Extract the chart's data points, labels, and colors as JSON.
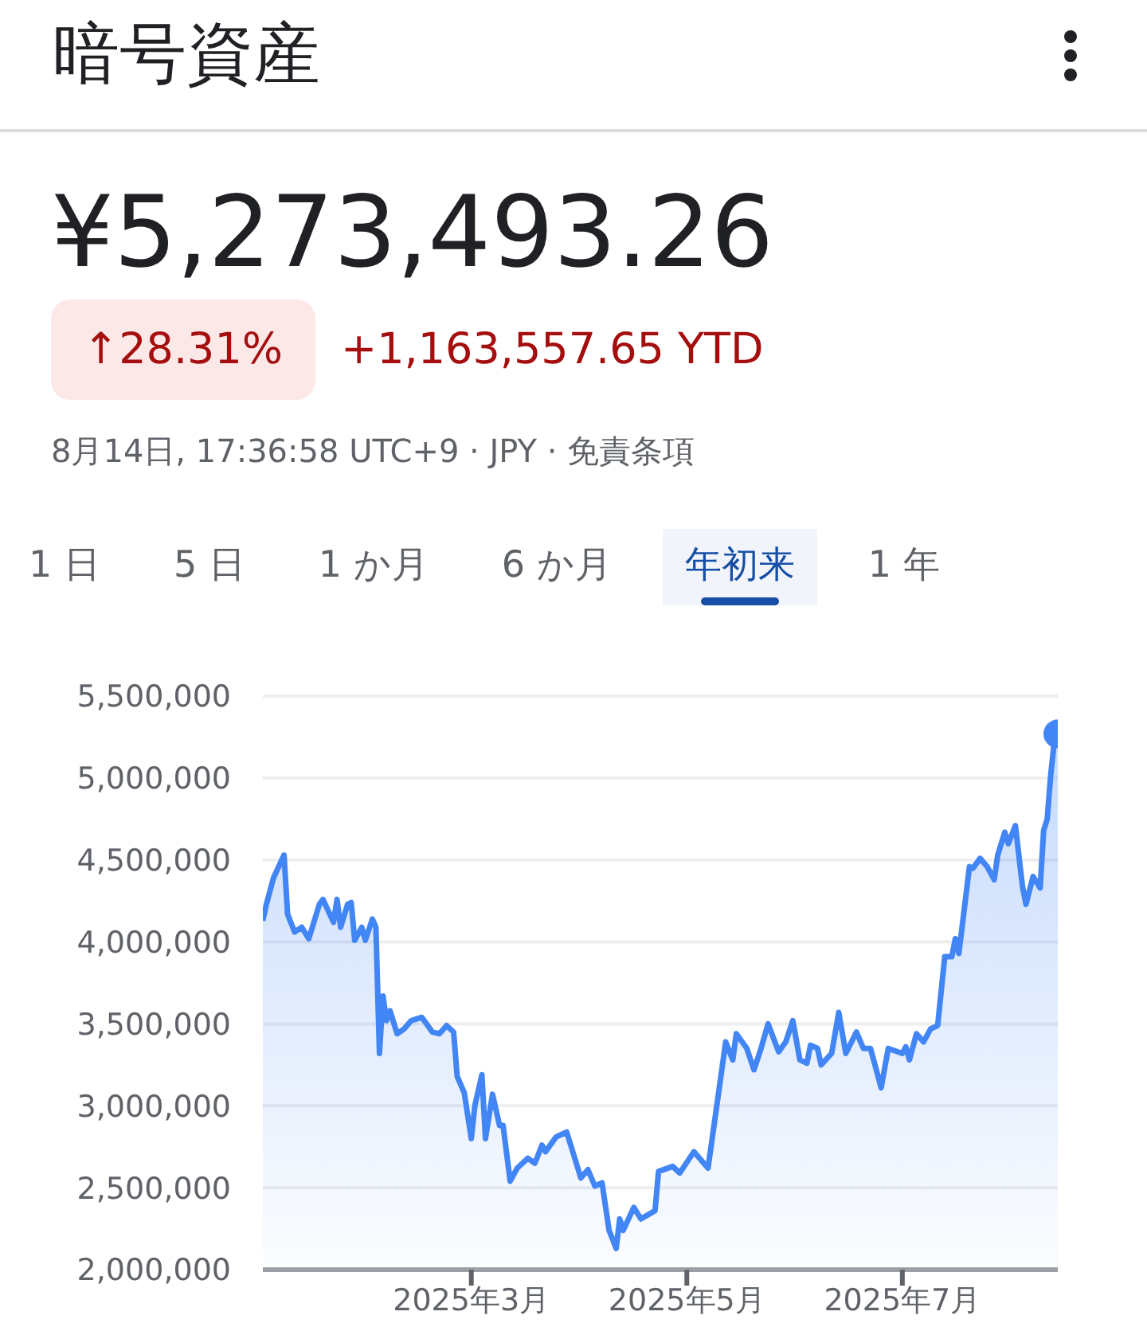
{
  "chart_data": {
    "type": "area",
    "title": "暗号資産",
    "subtitle": "¥5,273,493.26",
    "annotations": [
      "↑28.31%",
      "+1,163,557.65 YTD",
      "8月14日, 17:36:58 UTC+9 · JPY · 免責条項",
      "1 日",
      "5 日",
      "1 か月",
      "6 か月",
      "年初来",
      "1 年"
    ],
    "x": [
      "2025-01-01",
      "2025-01-02",
      "2025-01-04",
      "2025-01-07",
      "2025-01-08",
      "2025-01-10",
      "2025-01-12",
      "2025-01-14",
      "2025-01-17",
      "2025-01-18",
      "2025-01-21",
      "2025-01-22",
      "2025-01-23",
      "2025-01-25",
      "2025-01-26",
      "2025-01-27",
      "2025-01-29",
      "2025-01-30",
      "2025-02-01",
      "2025-02-02",
      "2025-02-03",
      "2025-02-04",
      "2025-02-05",
      "2025-02-06",
      "2025-02-08",
      "2025-02-10",
      "2025-02-12",
      "2025-02-15",
      "2025-02-18",
      "2025-02-20",
      "2025-02-22",
      "2025-02-24",
      "2025-02-25",
      "2025-02-27",
      "2025-03-01",
      "2025-03-02",
      "2025-03-04",
      "2025-03-05",
      "2025-03-07",
      "2025-03-09",
      "2025-03-10",
      "2025-03-12",
      "2025-03-14",
      "2025-03-17",
      "2025-03-19",
      "2025-03-21",
      "2025-03-22",
      "2025-03-25",
      "2025-03-28",
      "2025-04-01",
      "2025-04-03",
      "2025-04-05",
      "2025-04-07",
      "2025-04-09",
      "2025-04-11",
      "2025-04-12",
      "2025-04-13",
      "2025-04-16",
      "2025-04-18",
      "2025-04-22",
      "2025-04-23",
      "2025-04-27",
      "2025-04-29",
      "2025-05-03",
      "2025-05-07",
      "2025-05-10",
      "2025-05-12",
      "2025-05-14",
      "2025-05-15",
      "2025-05-18",
      "2025-05-20",
      "2025-05-22",
      "2025-05-24",
      "2025-05-27",
      "2025-05-29",
      "2025-05-31",
      "2025-06-02",
      "2025-06-04",
      "2025-06-05",
      "2025-06-07",
      "2025-06-08",
      "2025-06-11",
      "2025-06-13",
      "2025-06-15",
      "2025-06-18",
      "2025-06-20",
      "2025-06-22",
      "2025-06-25",
      "2025-06-27",
      "2025-07-01",
      "2025-07-02",
      "2025-07-03",
      "2025-07-05",
      "2025-07-07",
      "2025-07-09",
      "2025-07-11",
      "2025-07-13",
      "2025-07-15",
      "2025-07-16",
      "2025-07-17",
      "2025-07-20",
      "2025-07-21",
      "2025-07-23",
      "2025-07-25",
      "2025-07-27",
      "2025-07-28",
      "2025-07-30",
      "2025-07-31",
      "2025-08-02",
      "2025-08-04",
      "2025-08-05",
      "2025-08-07",
      "2025-08-09",
      "2025-08-10",
      "2025-08-11",
      "2025-08-12",
      "2025-08-13",
      "2025-08-14"
    ],
    "series": [
      {
        "color": "#4285f4",
        "values": [
          4130000,
          4230000,
          4390000,
          4530000,
          4170000,
          4060000,
          4090000,
          4020000,
          4230000,
          4260000,
          4120000,
          4260000,
          4090000,
          4230000,
          4240000,
          4010000,
          4090000,
          4010000,
          4140000,
          4090000,
          3320000,
          3670000,
          3520000,
          3580000,
          3440000,
          3470000,
          3520000,
          3540000,
          3450000,
          3440000,
          3490000,
          3450000,
          3180000,
          3080000,
          2800000,
          3000000,
          3190000,
          2800000,
          3070000,
          2880000,
          2880000,
          2540000,
          2620000,
          2680000,
          2650000,
          2760000,
          2720000,
          2810000,
          2840000,
          2560000,
          2610000,
          2510000,
          2530000,
          2240000,
          2130000,
          2310000,
          2240000,
          2380000,
          2310000,
          2360000,
          2600000,
          2630000,
          2590000,
          2720000,
          2620000,
          3080000,
          3390000,
          3280000,
          3440000,
          3350000,
          3220000,
          3350000,
          3500000,
          3330000,
          3390000,
          3520000,
          3280000,
          3260000,
          3370000,
          3350000,
          3250000,
          3320000,
          3570000,
          3320000,
          3450000,
          3350000,
          3350000,
          3110000,
          3350000,
          3320000,
          3360000,
          3280000,
          3440000,
          3390000,
          3470000,
          3490000,
          3910000,
          3910000,
          4020000,
          3930000,
          4460000,
          4450000,
          4510000,
          4460000,
          4380000,
          4530000,
          4670000,
          4600000,
          4710000,
          4340000,
          4230000,
          4400000,
          4330000,
          4680000,
          4750000,
          5020000,
          5220000,
          5270000
        ]
      }
    ],
    "xlim": [
      "2025-01-01",
      "2025-08-14"
    ],
    "xticks": [
      {
        "value": "2025-03-01",
        "label": "2025年3月"
      },
      {
        "value": "2025-05-01",
        "label": "2025年5月"
      },
      {
        "value": "2025-07-01",
        "label": "2025年7月"
      }
    ],
    "ylim": [
      2000000,
      5500000
    ],
    "yticks": [
      {
        "value": 2000000,
        "label": "2,000,000"
      },
      {
        "value": 2500000,
        "label": "2,500,000"
      },
      {
        "value": 3000000,
        "label": "3,000,000"
      },
      {
        "value": 3500000,
        "label": "3,500,000"
      },
      {
        "value": 4000000,
        "label": "4,000,000"
      },
      {
        "value": 4500000,
        "label": "4,500,000"
      },
      {
        "value": 5000000,
        "label": "5,000,000"
      },
      {
        "value": 5500000,
        "label": "5,500,000"
      }
    ],
    "grid": "y"
  }
}
